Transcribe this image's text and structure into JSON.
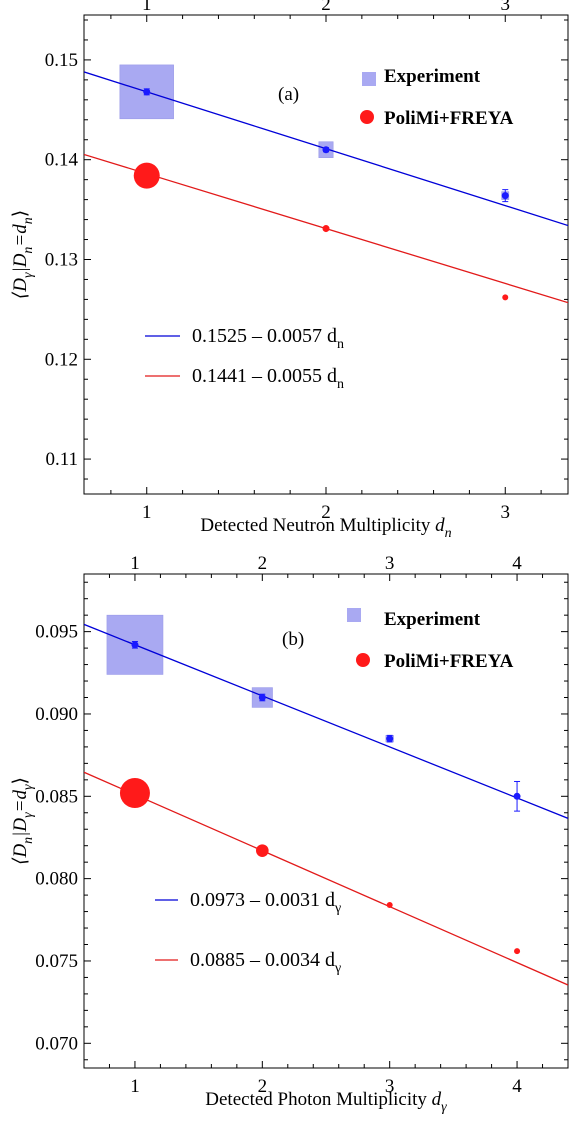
{
  "colors": {
    "experiment_point": "#1a1aff",
    "experiment_box": "#a9a9f2",
    "experiment_fit": "#0000d8",
    "model": "#ff1a1a",
    "model_fit": "#e21a1a"
  },
  "chart_data": [
    {
      "type": "scatter",
      "panel_label": "(a)",
      "xlabel": "Detected Neutron Multiplicity",
      "xlabel_var": "d",
      "xlabel_sub": "n",
      "ylabel": "⟨D_γ|D_n=d_n⟩",
      "ylabel_parts": [
        "⟨D",
        "γ",
        "|D",
        "n",
        "=d",
        "n",
        "⟩"
      ],
      "xlim": [
        0.65,
        3.35
      ],
      "ylim": [
        0.1065,
        0.1545
      ],
      "x_ticks": [
        1,
        2,
        3
      ],
      "x_tick_labels": [
        "1",
        "2",
        "3"
      ],
      "y_ticks": [
        0.11,
        0.12,
        0.13,
        0.14,
        0.15
      ],
      "y_tick_labels": [
        "0.11",
        "0.12",
        "0.13",
        "0.14",
        "0.15"
      ],
      "legend": {
        "position": "top-right",
        "entries": [
          "Experiment",
          "PoliMi+FREYA"
        ]
      },
      "series": [
        {
          "name": "Experiment",
          "x": [
            1,
            2,
            3
          ],
          "y": [
            0.1468,
            0.141,
            0.1364
          ],
          "err": [
            0.0003,
            0.0002,
            0.0006
          ],
          "box_half_width": [
            0.15,
            0.04,
            0.02
          ],
          "box_half_height": [
            0.0027,
            0.0008,
            0.0004
          ]
        },
        {
          "name": "PoliMi+FREYA",
          "x": [
            1,
            2,
            3
          ],
          "y": [
            0.1384,
            0.1331,
            0.1262
          ],
          "radius_scale": [
            1.0,
            0.27,
            0.17
          ]
        }
      ],
      "fits": [
        {
          "text": "0.1525  – 0.0057 d",
          "sub": "n",
          "intercept": 0.1525,
          "slope": -0.0057
        },
        {
          "text": "0.1441  – 0.0055 d",
          "sub": "n",
          "intercept": 0.1441,
          "slope": -0.0055
        }
      ]
    },
    {
      "type": "scatter",
      "panel_label": "(b)",
      "xlabel": "Detected Photon Multiplicity",
      "xlabel_var": "d",
      "xlabel_sub": "γ",
      "ylabel": "⟨D_n|D_γ=d_γ⟩",
      "ylabel_parts": [
        "⟨D",
        "n",
        "|D",
        "γ",
        "=d",
        "γ",
        "⟩"
      ],
      "xlim": [
        0.6,
        4.4
      ],
      "ylim": [
        0.0685,
        0.0985
      ],
      "x_ticks": [
        1,
        2,
        3,
        4
      ],
      "x_tick_labels": [
        "1",
        "2",
        "3",
        "4"
      ],
      "y_ticks": [
        0.07,
        0.075,
        0.08,
        0.085,
        0.09,
        0.095
      ],
      "y_tick_labels": [
        "0.070",
        "0.075",
        "0.080",
        "0.085",
        "0.090",
        "0.095"
      ],
      "legend": {
        "position": "top-right",
        "entries": [
          "Experiment",
          "PoliMi+FREYA"
        ]
      },
      "series": [
        {
          "name": "Experiment",
          "x": [
            1,
            2,
            3,
            4
          ],
          "y": [
            0.0942,
            0.091,
            0.0885,
            0.085
          ],
          "err": [
            0.0002,
            0.0002,
            0.0002,
            0.0009
          ],
          "box_half_width": [
            0.22,
            0.08,
            0.03,
            0.01
          ],
          "box_half_height": [
            0.0018,
            0.0006,
            0.0002,
            0.0001
          ]
        },
        {
          "name": "PoliMi+FREYA",
          "x": [
            1,
            2,
            3,
            4
          ],
          "y": [
            0.0852,
            0.0817,
            0.0784,
            0.0756
          ],
          "radius_scale": [
            1.0,
            0.42,
            0.16,
            0.12
          ]
        }
      ],
      "fits": [
        {
          "text": "0.0973 – 0.0031 d",
          "sub": "γ",
          "intercept": 0.0973,
          "slope": -0.0031
        },
        {
          "text": "0.0885 – 0.0034 d",
          "sub": "γ",
          "intercept": 0.0885,
          "slope": -0.0034
        }
      ]
    }
  ]
}
